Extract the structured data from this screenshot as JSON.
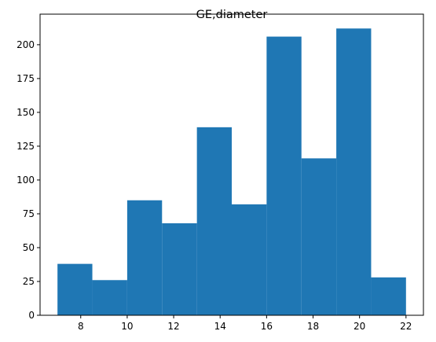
{
  "chart_data": {
    "type": "bar",
    "title": "GE,diameter",
    "xlabel": "",
    "ylabel": "",
    "bin_edges": [
      7,
      8.5,
      10,
      11.5,
      13,
      14.5,
      16,
      17.5,
      19,
      20.5,
      22
    ],
    "values": [
      38,
      26,
      85,
      68,
      139,
      82,
      206,
      116,
      212,
      28
    ],
    "xlim": [
      6.25,
      22.75
    ],
    "ylim": [
      0,
      222.6
    ],
    "x_ticks": [
      8,
      10,
      12,
      14,
      16,
      18,
      20,
      22
    ],
    "y_ticks": [
      0,
      25,
      50,
      75,
      100,
      125,
      150,
      175,
      200
    ],
    "grid": false,
    "colors": {
      "bar": "#1f77b4",
      "axis": "#000000"
    }
  }
}
